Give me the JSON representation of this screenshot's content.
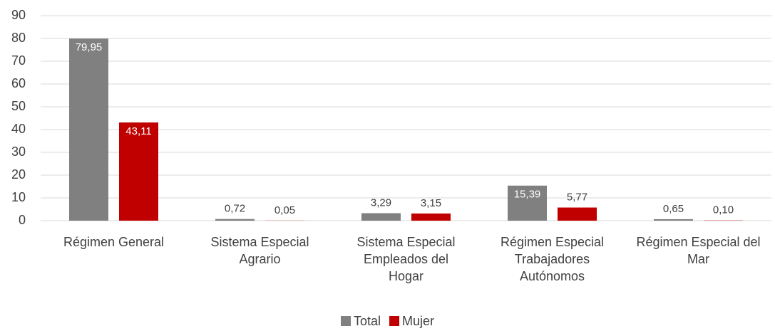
{
  "chart_data": {
    "type": "bar",
    "categories": [
      "Régimen General",
      "Sistema Especial\nAgrario",
      "Sistema Especial\nEmpleados del\nHogar",
      "Régimen Especial\nTrabajadores\nAutónomos",
      "Régimen Especial del\nMar"
    ],
    "series": [
      {
        "name": "Total",
        "color": "#808080",
        "values": [
          79.95,
          0.72,
          3.29,
          15.39,
          0.65
        ],
        "value_labels": [
          "79,95",
          "0,72",
          "3,29",
          "15,39",
          "0,65"
        ]
      },
      {
        "name": "Mujer",
        "color": "#c00000",
        "values": [
          43.11,
          0.05,
          3.15,
          5.77,
          0.1
        ],
        "value_labels": [
          "43,11",
          "0,05",
          "3,15",
          "5,77",
          "0,10"
        ]
      }
    ],
    "ylim": [
      0,
      90
    ],
    "yticks": [
      0,
      10,
      20,
      30,
      40,
      50,
      60,
      70,
      80,
      90
    ],
    "grid": true,
    "legend": "bottom"
  }
}
